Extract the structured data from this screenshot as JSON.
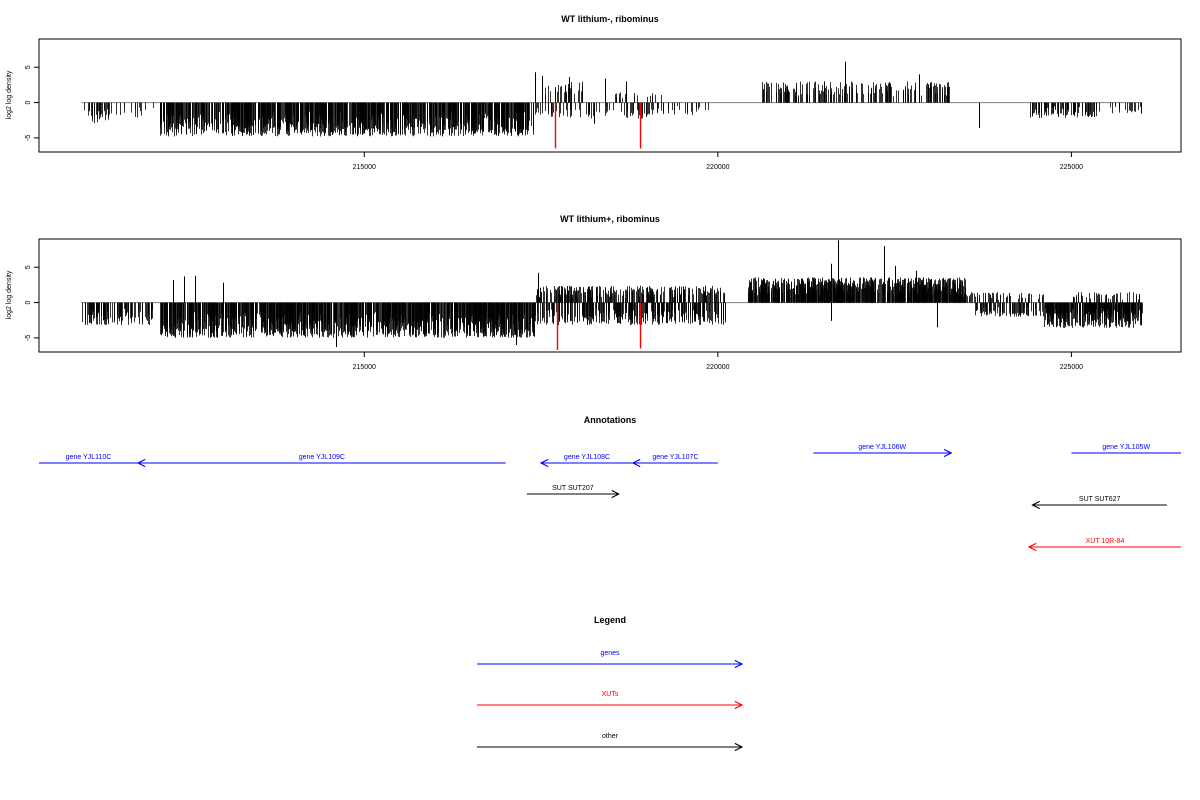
{
  "colors": {
    "genes": "#0000ff",
    "XUTs": "#ff0000",
    "other": "#000000",
    "highlight": "#ff0000",
    "bars": "#000000",
    "baseline": "#808080"
  },
  "chart_data": [
    {
      "type": "bar",
      "title": "WT lithium-, ribominus",
      "ylabel": "log2 log density",
      "xlim": [
        210400,
        226550
      ],
      "ylim": [
        -7,
        9
      ],
      "xticks": [
        215000,
        220000,
        225000
      ],
      "yticks": [
        -5,
        0,
        5
      ],
      "grid": false,
      "segments": [
        {
          "x0": 211000,
          "x1": 212050,
          "amp": -2.2,
          "density": 0.35,
          "seed": 11
        },
        {
          "x0": 211100,
          "x1": 211400,
          "amp": -3.0,
          "density": 0.9,
          "seed": 12
        },
        {
          "x0": 212100,
          "x1": 217400,
          "amp": -4.8,
          "density": 2.6,
          "seed": 13
        },
        {
          "x0": 217400,
          "x1": 218200,
          "amp": 3.2,
          "density": 0.5,
          "seed": 14
        },
        {
          "x0": 217400,
          "x1": 219100,
          "amp": -2.3,
          "density": 0.6,
          "seed": 15
        },
        {
          "x0": 219100,
          "x1": 219900,
          "amp": -1.8,
          "density": 0.45,
          "seed": 16
        },
        {
          "x0": 218400,
          "x1": 219300,
          "amp": 1.6,
          "density": 0.3,
          "seed": 17
        },
        {
          "x0": 220600,
          "x1": 223300,
          "amp": 3.0,
          "density": 0.9,
          "seed": 18
        },
        {
          "x0": 224400,
          "x1": 225400,
          "amp": -2.2,
          "density": 1.2,
          "seed": 19
        },
        {
          "x0": 225500,
          "x1": 226000,
          "amp": -1.6,
          "density": 0.5,
          "seed": 20
        }
      ],
      "spikes": [
        {
          "x": 217420,
          "y": 4.3
        },
        {
          "x": 217520,
          "y": 3.8
        },
        {
          "x": 217900,
          "y": 3.6
        },
        {
          "x": 218400,
          "y": 3.4
        },
        {
          "x": 218700,
          "y": 3.0
        },
        {
          "x": 221800,
          "y": 5.8
        },
        {
          "x": 221500,
          "y": 3.0
        },
        {
          "x": 222850,
          "y": 4.0
        },
        {
          "x": 223000,
          "y": 2.8
        },
        {
          "x": 223700,
          "y": -3.6
        },
        {
          "x": 217200,
          "y": -3.8
        },
        {
          "x": 218250,
          "y": -3.0
        }
      ],
      "highlights": [
        {
          "x": 217700,
          "y": -6.5
        },
        {
          "x": 218900,
          "y": -6.5
        }
      ]
    },
    {
      "type": "bar",
      "title": "WT lithium+, ribominus",
      "ylabel": "log2 log density",
      "xlim": [
        210400,
        226550
      ],
      "ylim": [
        -7,
        9
      ],
      "xticks": [
        215000,
        220000,
        225000
      ],
      "yticks": [
        -5,
        0,
        5
      ],
      "grid": false,
      "segments": [
        {
          "x0": 211000,
          "x1": 212000,
          "amp": -3.2,
          "density": 1.4,
          "seed": 31
        },
        {
          "x0": 212100,
          "x1": 217400,
          "amp": -5.0,
          "density": 3.0,
          "seed": 32
        },
        {
          "x0": 217400,
          "x1": 220100,
          "amp": 2.4,
          "density": 1.4,
          "seed": 33
        },
        {
          "x0": 217400,
          "x1": 220100,
          "amp": -3.2,
          "density": 1.6,
          "seed": 34
        },
        {
          "x0": 220400,
          "x1": 223500,
          "amp": 3.6,
          "density": 3.0,
          "seed": 35
        },
        {
          "x0": 223400,
          "x1": 224600,
          "amp": 1.5,
          "density": 0.8,
          "seed": 36
        },
        {
          "x0": 223600,
          "x1": 226000,
          "amp": -2.0,
          "density": 1.0,
          "seed": 37
        },
        {
          "x0": 224600,
          "x1": 226000,
          "amp": -3.6,
          "density": 2.2,
          "seed": 38
        },
        {
          "x0": 225000,
          "x1": 226000,
          "amp": 1.5,
          "density": 0.6,
          "seed": 39
        }
      ],
      "spikes": [
        {
          "x": 212450,
          "y": 3.7
        },
        {
          "x": 212600,
          "y": 3.8
        },
        {
          "x": 213000,
          "y": 2.8
        },
        {
          "x": 212300,
          "y": 3.2
        },
        {
          "x": 221700,
          "y": 8.8
        },
        {
          "x": 222350,
          "y": 8.0
        },
        {
          "x": 221600,
          "y": 5.5
        },
        {
          "x": 222500,
          "y": 5.2
        },
        {
          "x": 222800,
          "y": 4.5
        },
        {
          "x": 217450,
          "y": 4.2
        },
        {
          "x": 223100,
          "y": -3.5
        },
        {
          "x": 214600,
          "y": -6.3
        },
        {
          "x": 217150,
          "y": -6.0
        },
        {
          "x": 221600,
          "y": -2.6
        }
      ],
      "highlights": [
        {
          "x": 217720,
          "y": -6.7
        },
        {
          "x": 218900,
          "y": -6.5
        }
      ]
    }
  ],
  "annotations": {
    "title": "Annotations",
    "features": [
      {
        "label": "gene YJL110C",
        "type": "genes",
        "x0": 210400,
        "x1": 211800,
        "dir": "none",
        "row": 0
      },
      {
        "label": "gene YJL109C",
        "type": "genes",
        "x0": 211800,
        "x1": 217000,
        "dir": "left",
        "row": 0
      },
      {
        "label": "gene YJL108C",
        "type": "genes",
        "x0": 217500,
        "x1": 218800,
        "dir": "left",
        "row": 0
      },
      {
        "label": "gene YJL107C",
        "type": "genes",
        "x0": 218800,
        "x1": 220000,
        "dir": "left",
        "row": 0
      },
      {
        "label": "gene YJL106W",
        "type": "genes",
        "x0": 221350,
        "x1": 223300,
        "dir": "right",
        "row": -1
      },
      {
        "label": "gene YJL105W",
        "type": "genes",
        "x0": 225000,
        "x1": 226550,
        "dir": "none",
        "row": -1
      },
      {
        "label": "SUT SUT207",
        "type": "other",
        "x0": 217300,
        "x1": 218600,
        "dir": "right",
        "row": 1
      },
      {
        "label": "SUT SUT627",
        "type": "other",
        "x0": 224450,
        "x1": 226350,
        "dir": "left",
        "row": 2
      },
      {
        "label": "XUT 10R-84",
        "type": "XUTs",
        "x0": 224400,
        "x1": 226550,
        "dir": "left",
        "row": 3
      }
    ]
  },
  "legend": {
    "title": "Legend",
    "items": [
      {
        "label": "genes",
        "type": "genes"
      },
      {
        "label": "XUTs",
        "type": "XUTs"
      },
      {
        "label": "other",
        "type": "other"
      }
    ]
  }
}
